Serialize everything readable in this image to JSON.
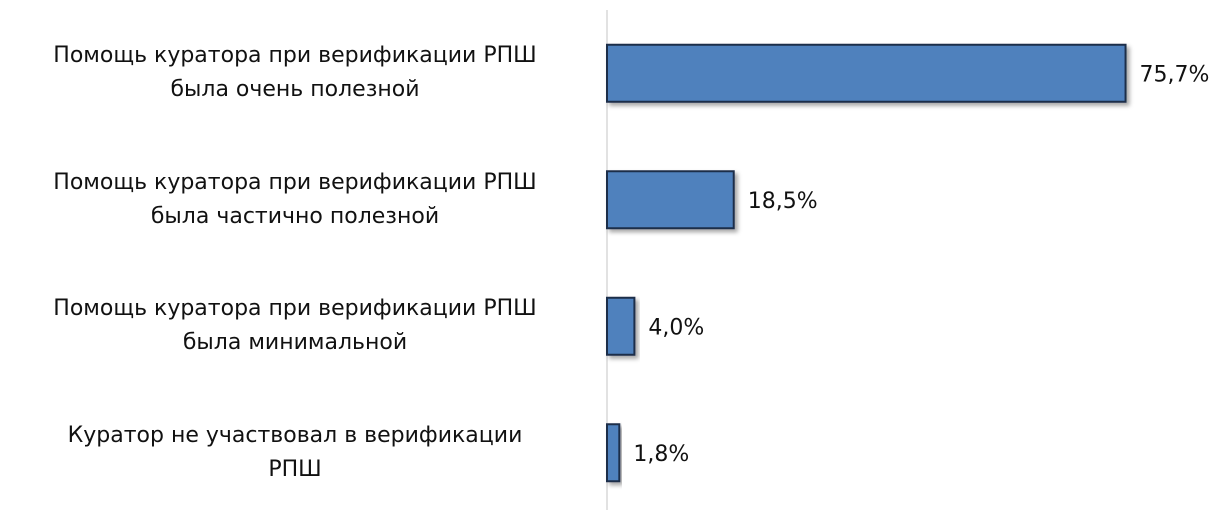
{
  "chart_data": {
    "type": "bar",
    "orientation": "horizontal",
    "categories": [
      "Помощь куратора при верификации РПШ\nбыла очень полезной",
      "Помощь куратора при верификации РПШ\nбыла частично полезной",
      "Помощь куратора при верификации РПШ\nбыла минимальной",
      "Куратор не участвовал в верификации\nРПШ"
    ],
    "values": [
      75.7,
      18.5,
      4.0,
      1.8
    ],
    "value_labels": [
      "75,7%",
      "18,5%",
      "4,0%",
      "1,8%"
    ],
    "color": "#4f81bd"
  }
}
